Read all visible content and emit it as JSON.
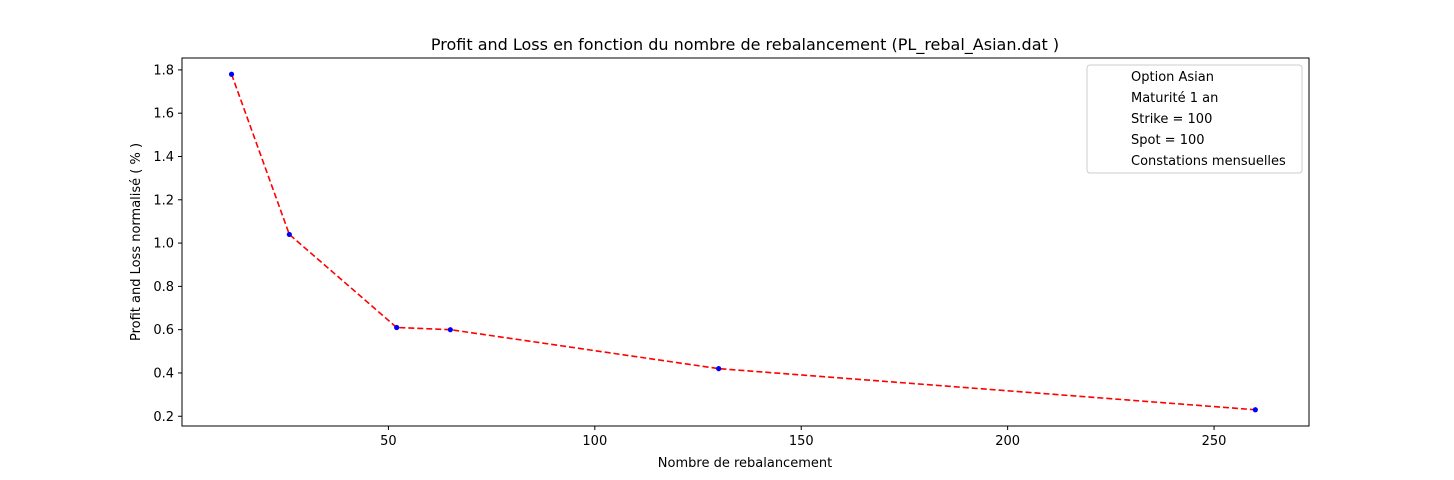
{
  "chart_data": {
    "type": "line",
    "title": "Profit and Loss en fonction du nombre de rebalancement   (PL_rebal_Asian.dat )",
    "xlabel": "Nombre de rebalancement",
    "ylabel": "Profit and Loss normalisé ( % )",
    "xlim": [
      0,
      273
    ],
    "ylim": [
      0.155,
      1.855
    ],
    "xticks": [
      50,
      100,
      150,
      200,
      250
    ],
    "yticks": [
      0.2,
      0.4,
      0.6,
      0.8,
      1.0,
      1.2,
      1.4,
      1.6,
      1.8
    ],
    "xtick_labels": [
      "50",
      "100",
      "150",
      "200",
      "250"
    ],
    "ytick_labels": [
      "0.2",
      "0.4",
      "0.6",
      "0.8",
      "1.0",
      "1.2",
      "1.4",
      "1.6",
      "1.8"
    ],
    "grid": false,
    "legend_position": "top-right",
    "legend": [
      "Option Asian",
      "Maturité 1 an",
      "Strike = 100",
      "Spot = 100",
      "Constations mensuelles"
    ],
    "series": [
      {
        "x": [
          12,
          26,
          52,
          65,
          130,
          260
        ],
        "y": [
          1.78,
          1.04,
          0.61,
          0.6,
          0.42,
          0.23
        ],
        "line_color": "#ff0000",
        "line_style": "dashed",
        "marker_color": "#0000ff"
      }
    ]
  }
}
